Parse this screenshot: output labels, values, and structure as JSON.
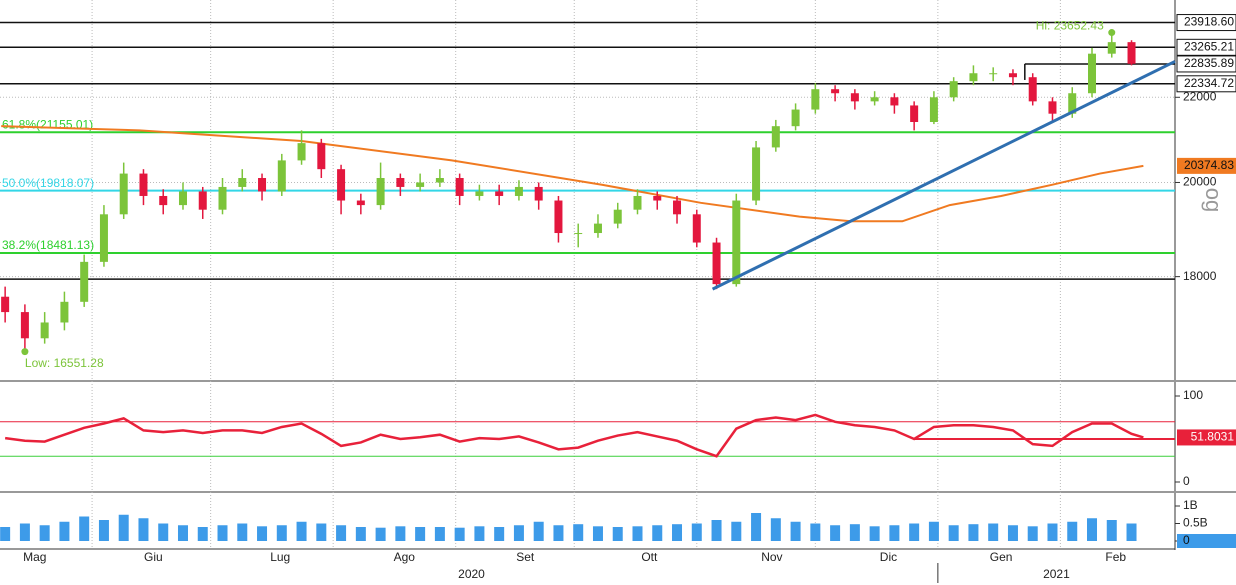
{
  "chart_data": {
    "type": "candlestick",
    "x": [
      9,
      14,
      19,
      24,
      29,
      34,
      39,
      44,
      49,
      54,
      59,
      64,
      69,
      74,
      79,
      84,
      89,
      94,
      99,
      104,
      109,
      114,
      119,
      124,
      129,
      134,
      139,
      144,
      149,
      154,
      159,
      164,
      169,
      174,
      179,
      184,
      189,
      194,
      199,
      204,
      209,
      214,
      219,
      224,
      229,
      234,
      239,
      244,
      249,
      254,
      259,
      264,
      269,
      274,
      279,
      284,
      289,
      294
    ],
    "open": [
      17600,
      17300,
      16800,
      17100,
      17500,
      18300,
      19300,
      20200,
      19700,
      19500,
      19800,
      19400,
      19900,
      20100,
      19800,
      20500,
      20900,
      20300,
      19600,
      19500,
      20100,
      19900,
      20000,
      20100,
      19700,
      19800,
      19700,
      19900,
      19600,
      18900,
      18900,
      19100,
      19400,
      19700,
      19600,
      19300,
      18700,
      17850,
      19600,
      20800,
      21300,
      21700,
      22200,
      22100,
      21900,
      22000,
      21800,
      21400,
      22000,
      22400,
      22600,
      22600,
      22500,
      21900,
      21600,
      22100,
      23100,
      23400
    ],
    "high": [
      17800,
      17450,
      17300,
      17700,
      18450,
      19500,
      20450,
      20300,
      19850,
      20000,
      19900,
      20100,
      20300,
      20200,
      20650,
      21200,
      21000,
      20400,
      19750,
      20450,
      20200,
      20200,
      20300,
      20200,
      19950,
      19950,
      20050,
      20000,
      19700,
      19100,
      19300,
      19550,
      19850,
      19800,
      19700,
      19400,
      18800,
      19750,
      20950,
      21450,
      21850,
      22350,
      22300,
      22200,
      22150,
      22100,
      21900,
      22150,
      22500,
      22800,
      22750,
      22700,
      22600,
      22000,
      22250,
      23250,
      23652.43,
      23450
    ],
    "low": [
      17100,
      16551.28,
      16700,
      16950,
      17400,
      18200,
      19200,
      19500,
      19300,
      19400,
      19200,
      19300,
      19800,
      19600,
      19700,
      20400,
      20100,
      19300,
      19300,
      19400,
      19700,
      19800,
      19900,
      19500,
      19600,
      19500,
      19600,
      19400,
      18700,
      18600,
      18800,
      19000,
      19300,
      19400,
      19100,
      18600,
      17750,
      17800,
      19500,
      20700,
      21200,
      21600,
      21900,
      21700,
      21800,
      21600,
      21200,
      21350,
      21900,
      22300,
      22400,
      22300,
      21800,
      21400,
      21500,
      22000,
      23000,
      22800
    ],
    "close": [
      17300,
      16800,
      17100,
      17500,
      18300,
      19300,
      20200,
      19700,
      19500,
      19800,
      19400,
      19900,
      20100,
      19800,
      20500,
      20900,
      20300,
      19600,
      19500,
      20100,
      19900,
      20000,
      20100,
      19700,
      19800,
      19700,
      19900,
      19600,
      18900,
      18900,
      19100,
      19400,
      19700,
      19600,
      19300,
      18700,
      17850,
      19600,
      20800,
      21300,
      21700,
      22200,
      22100,
      21900,
      22000,
      21800,
      21400,
      22000,
      22400,
      22600,
      22600,
      22500,
      21900,
      21600,
      22100,
      23100,
      23400,
      22840
    ],
    "up_color": "#7cc43a",
    "down_color": "#e3173e",
    "ylim": [
      16070,
      24530
    ],
    "log_scale": true,
    "yticks": [
      18000,
      20000,
      22000
    ],
    "xlim": [
      7.7,
      305
    ],
    "xticks": [
      {
        "value": 16.5,
        "label": "Mag"
      },
      {
        "value": 46.5,
        "label": "Giu"
      },
      {
        "value": 78.6,
        "label": "Lug"
      },
      {
        "value": 110,
        "label": "Ago"
      },
      {
        "value": 140.6,
        "label": "Set"
      },
      {
        "value": 172,
        "label": "Ott"
      },
      {
        "value": 203,
        "label": "Nov"
      },
      {
        "value": 232.5,
        "label": "Dic"
      },
      {
        "value": 261,
        "label": "Gen"
      },
      {
        "value": 290,
        "label": "Feb"
      }
    ],
    "xgrid": [
      31,
      61,
      92,
      123,
      153,
      184,
      214,
      245,
      276
    ],
    "grid": true,
    "year_labels": [
      {
        "value": 127,
        "label": "2020"
      },
      {
        "value": 275,
        "label": "2021"
      }
    ],
    "year_boundary": 245,
    "moving_average": {
      "color": "#f07a21",
      "x": [
        8,
        43,
        84,
        122,
        160,
        185,
        210,
        223,
        236,
        248,
        261,
        274,
        286,
        297
      ],
      "values": [
        21300,
        21200,
        20950,
        20500,
        19950,
        19550,
        19250,
        19150,
        19150,
        19500,
        19700,
        19950,
        20200,
        20374.83
      ]
    },
    "levels": [
      {
        "value": 23918.6,
        "label": "23918.60"
      },
      {
        "value": 23265.21,
        "label": "23265.21"
      },
      {
        "value": 22835.89,
        "label": "22835.89",
        "start_x": 267
      },
      {
        "value": 22334.72,
        "label": "22334.72"
      }
    ],
    "support_line": 17950,
    "fib_levels": [
      {
        "value": 21155.01,
        "label": "61.8%(21155.01)",
        "color": "#2ed02e"
      },
      {
        "value": 19818.07,
        "label": "50.0%(19818.07)",
        "color": "#33d6e6"
      },
      {
        "value": 18481.13,
        "label": "38.2%(18481.13)",
        "color": "#2ed02e"
      }
    ],
    "trendline": {
      "color": "#2f6fb0",
      "x": [
        188,
        305
      ],
      "values": [
        17750,
        22900
      ]
    },
    "annotations": [
      {
        "text": "Hi: 23652.43",
        "index": 56
      },
      {
        "text": "Low: 16551.28",
        "index": 1
      }
    ],
    "watermark": "og",
    "rsi": {
      "color": "#e8213a",
      "x": [
        9,
        14,
        19,
        24,
        29,
        34,
        39,
        44,
        49,
        54,
        59,
        64,
        69,
        74,
        79,
        84,
        89,
        94,
        99,
        104,
        109,
        114,
        119,
        124,
        129,
        134,
        139,
        144,
        149,
        154,
        159,
        164,
        169,
        174,
        179,
        184,
        189,
        194,
        199,
        204,
        209,
        214,
        219,
        224,
        229,
        234,
        239,
        244,
        249,
        254,
        259,
        264,
        269,
        274,
        279,
        284,
        289,
        294,
        297
      ],
      "values": [
        51,
        48,
        47,
        55,
        63,
        68,
        74,
        60,
        58,
        60,
        57,
        60,
        60,
        57,
        64,
        68,
        56,
        42,
        46,
        55,
        50,
        52,
        55,
        47,
        51,
        50,
        53,
        46,
        38,
        40,
        48,
        54,
        58,
        53,
        48,
        38,
        30,
        62,
        72,
        75,
        72,
        78,
        70,
        66,
        64,
        60,
        50,
        64,
        66,
        66,
        64,
        60,
        44,
        42,
        58,
        68,
        68,
        56,
        51.8031
      ],
      "ylim": [
        0,
        100
      ],
      "yticks": [
        0,
        100
      ],
      "upper": 70,
      "lower": 30,
      "upper_color": "#e8213a",
      "lower_color": "#3ccf3c",
      "midline": {
        "value": 50,
        "start_x": 239
      }
    },
    "volume": {
      "color": "#3d9be9",
      "values": [
        0.4,
        0.5,
        0.45,
        0.55,
        0.7,
        0.6,
        0.75,
        0.65,
        0.5,
        0.45,
        0.4,
        0.45,
        0.5,
        0.42,
        0.45,
        0.55,
        0.5,
        0.45,
        0.4,
        0.38,
        0.42,
        0.4,
        0.4,
        0.38,
        0.42,
        0.4,
        0.45,
        0.55,
        0.45,
        0.48,
        0.42,
        0.4,
        0.42,
        0.45,
        0.48,
        0.5,
        0.6,
        0.55,
        0.8,
        0.65,
        0.55,
        0.5,
        0.45,
        0.48,
        0.42,
        0.45,
        0.5,
        0.55,
        0.45,
        0.48,
        0.5,
        0.45,
        0.42,
        0.5,
        0.55,
        0.65,
        0.6,
        0.5
      ],
      "ylim": [
        0,
        1
      ],
      "yticks": [
        0,
        {
          "value": 0.5,
          "label": "0.5B"
        },
        {
          "value": 1,
          "label": "1B"
        }
      ],
      "current": 0
    }
  }
}
